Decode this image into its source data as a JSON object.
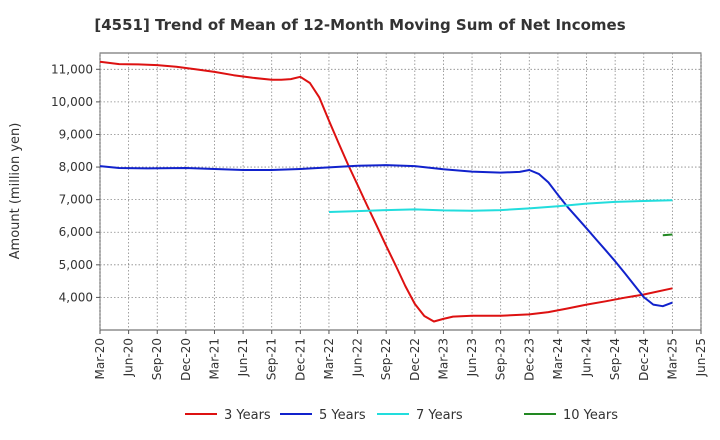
{
  "chart_data": {
    "type": "line",
    "title": "[4551]  Trend of Mean of 12-Month Moving Sum of Net Incomes",
    "xlabel": "",
    "ylabel": "Amount (million yen)",
    "ylim": [
      3000,
      11500
    ],
    "yticks": [
      4000,
      5000,
      6000,
      7000,
      8000,
      9000,
      10000,
      11000
    ],
    "ytick_labels": [
      "4,000",
      "5,000",
      "6,000",
      "7,000",
      "8,000",
      "9,000",
      "10,000",
      "11,000"
    ],
    "xlim": [
      "2020-03",
      "2025-06"
    ],
    "xtick_labels": [
      "Mar-20",
      "Jun-20",
      "Sep-20",
      "Dec-20",
      "Mar-21",
      "Jun-21",
      "Sep-21",
      "Dec-21",
      "Mar-22",
      "Jun-22",
      "Sep-22",
      "Dec-22",
      "Mar-23",
      "Jun-23",
      "Sep-23",
      "Dec-23",
      "Mar-24",
      "Jun-24",
      "Sep-24",
      "Dec-24",
      "Mar-25",
      "Jun-25"
    ],
    "grid": true,
    "legend_position": "bottom",
    "series": [
      {
        "name": "3 Years",
        "color": "#dd1111",
        "points": [
          [
            "2020-03",
            11230
          ],
          [
            "2020-05",
            11160
          ],
          [
            "2020-07",
            11150
          ],
          [
            "2020-09",
            11130
          ],
          [
            "2020-11",
            11080
          ],
          [
            "2021-01",
            11000
          ],
          [
            "2021-03",
            10920
          ],
          [
            "2021-05",
            10820
          ],
          [
            "2021-07",
            10740
          ],
          [
            "2021-09",
            10680
          ],
          [
            "2021-10",
            10680
          ],
          [
            "2021-11",
            10700
          ],
          [
            "2021-12",
            10770
          ],
          [
            "2022-01",
            10580
          ],
          [
            "2022-02",
            10130
          ],
          [
            "2022-03",
            9420
          ],
          [
            "2022-04",
            8740
          ],
          [
            "2022-05",
            8080
          ],
          [
            "2022-06",
            7450
          ],
          [
            "2022-07",
            6820
          ],
          [
            "2022-08",
            6200
          ],
          [
            "2022-09",
            5580
          ],
          [
            "2022-10",
            4980
          ],
          [
            "2022-11",
            4350
          ],
          [
            "2022-12",
            3800
          ],
          [
            "2023-01",
            3430
          ],
          [
            "2023-02",
            3260
          ],
          [
            "2023-03",
            3340
          ],
          [
            "2023-04",
            3410
          ],
          [
            "2023-06",
            3440
          ],
          [
            "2023-09",
            3440
          ],
          [
            "2023-12",
            3480
          ],
          [
            "2024-02",
            3550
          ],
          [
            "2024-04",
            3660
          ],
          [
            "2024-06",
            3780
          ],
          [
            "2024-08",
            3880
          ],
          [
            "2024-10",
            3990
          ],
          [
            "2024-12",
            4090
          ],
          [
            "2025-03",
            4280
          ]
        ]
      },
      {
        "name": "5 Years",
        "color": "#1122cc",
        "points": [
          [
            "2020-03",
            8030
          ],
          [
            "2020-05",
            7970
          ],
          [
            "2020-08",
            7960
          ],
          [
            "2020-12",
            7970
          ],
          [
            "2021-03",
            7940
          ],
          [
            "2021-06",
            7910
          ],
          [
            "2021-09",
            7910
          ],
          [
            "2021-12",
            7940
          ],
          [
            "2022-03",
            7990
          ],
          [
            "2022-06",
            8040
          ],
          [
            "2022-09",
            8060
          ],
          [
            "2022-12",
            8030
          ],
          [
            "2023-03",
            7930
          ],
          [
            "2023-06",
            7860
          ],
          [
            "2023-09",
            7830
          ],
          [
            "2023-11",
            7850
          ],
          [
            "2023-12",
            7910
          ],
          [
            "2024-01",
            7790
          ],
          [
            "2024-02",
            7530
          ],
          [
            "2024-03",
            7150
          ],
          [
            "2024-04",
            6780
          ],
          [
            "2024-05",
            6450
          ],
          [
            "2024-06",
            6120
          ],
          [
            "2024-07",
            5780
          ],
          [
            "2024-08",
            5450
          ],
          [
            "2024-09",
            5110
          ],
          [
            "2024-10",
            4750
          ],
          [
            "2024-11",
            4380
          ],
          [
            "2024-12",
            4010
          ],
          [
            "2025-01",
            3780
          ],
          [
            "2025-02",
            3730
          ],
          [
            "2025-03",
            3840
          ]
        ]
      },
      {
        "name": "7 Years",
        "color": "#22dddd",
        "points": [
          [
            "2022-03",
            6620
          ],
          [
            "2022-06",
            6650
          ],
          [
            "2022-09",
            6680
          ],
          [
            "2022-12",
            6700
          ],
          [
            "2023-03",
            6670
          ],
          [
            "2023-06",
            6660
          ],
          [
            "2023-09",
            6680
          ],
          [
            "2023-12",
            6730
          ],
          [
            "2024-03",
            6800
          ],
          [
            "2024-06",
            6880
          ],
          [
            "2024-09",
            6930
          ],
          [
            "2024-12",
            6960
          ],
          [
            "2025-03",
            6980
          ]
        ]
      },
      {
        "name": "10 Years",
        "color": "#228822",
        "points": [
          [
            "2025-02",
            5910
          ],
          [
            "2025-03",
            5930
          ]
        ]
      }
    ]
  }
}
